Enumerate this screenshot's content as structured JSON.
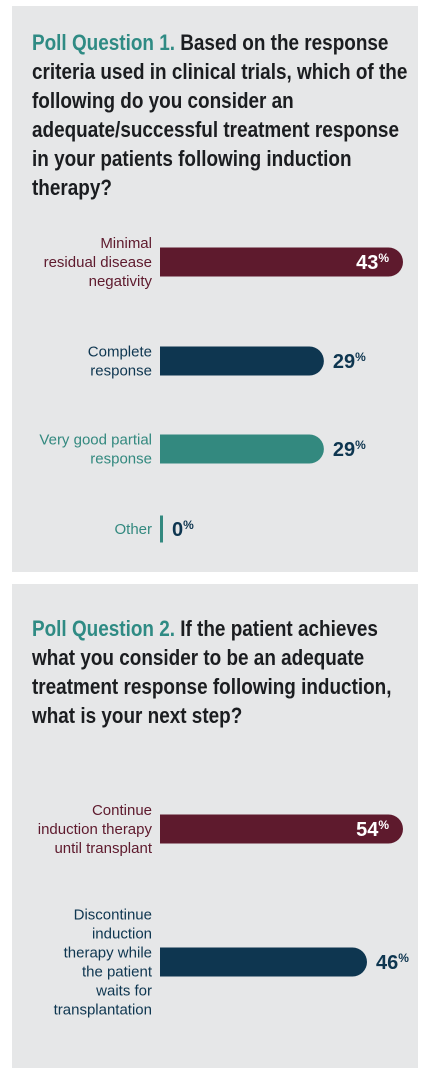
{
  "colors": {
    "maroon": "#5e1a2d",
    "navy": "#0e3650",
    "teal": "#33897f",
    "q_label": "#2f8b84",
    "panel_bg": "#e6e7e8"
  },
  "chart_data": [
    {
      "type": "bar",
      "orientation": "horizontal",
      "title_label": "Poll Question 1.",
      "title": "Based on the response criteria used in clinical trials, which of the following do you consider an adequate/successful treatment response in your patients following induction therapy?",
      "categories": [
        [
          "Minimal",
          "residual disease",
          "negativity"
        ],
        [
          "Complete",
          "response"
        ],
        [
          "Very good partial",
          "response"
        ],
        [
          "Other"
        ]
      ],
      "values": [
        43,
        29,
        29,
        0
      ],
      "value_labels": [
        "43",
        "29",
        "29",
        "0"
      ],
      "unit": "%",
      "colors": [
        "#5e1a2d",
        "#0e3650",
        "#33897f",
        "#33897f"
      ],
      "xlim": [
        0,
        43
      ]
    },
    {
      "type": "bar",
      "orientation": "horizontal",
      "title_label": "Poll Question 2.",
      "title": "If the patient achieves what you consider to be an adequate treatment response following induction, what is your next step?",
      "categories": [
        [
          "Continue",
          "induction therapy",
          "until transplant"
        ],
        [
          "Discontinue",
          "induction",
          "therapy while",
          "the patient",
          "waits for",
          "transplantation"
        ]
      ],
      "values": [
        54,
        46
      ],
      "value_labels": [
        "54",
        "46"
      ],
      "unit": "%",
      "colors": [
        "#5e1a2d",
        "#0e3650"
      ],
      "xlim": [
        0,
        54
      ]
    }
  ]
}
